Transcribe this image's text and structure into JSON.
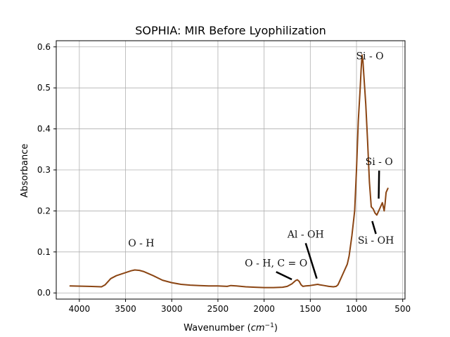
{
  "chart_data": {
    "type": "line",
    "title": "SOPHIA: MIR Before Lyophilization",
    "xlabel": "Wavenumber",
    "xlabel_unit_base": "cm",
    "xlabel_unit_exp": "−1",
    "ylabel": "Absorbance",
    "xlim": [
      4250,
      475
    ],
    "ylim": [
      -0.015,
      0.615
    ],
    "x_ticks": [
      4000,
      3500,
      3000,
      2500,
      2000,
      1500,
      1000,
      500
    ],
    "y_ticks": [
      0.0,
      0.1,
      0.2,
      0.3,
      0.4,
      0.5,
      0.6
    ],
    "grid": true,
    "series": [
      {
        "color": "#8b4513",
        "x": [
          4100,
          3900,
          3760,
          3720,
          3700,
          3660,
          3600,
          3520,
          3440,
          3400,
          3350,
          3300,
          3200,
          3100,
          3000,
          2900,
          2800,
          2700,
          2600,
          2500,
          2400,
          2360,
          2300,
          2200,
          2100,
          2000,
          1900,
          1800,
          1750,
          1700,
          1660,
          1640,
          1620,
          1600,
          1580,
          1550,
          1500,
          1450,
          1420,
          1400,
          1350,
          1300,
          1250,
          1220,
          1200,
          1180,
          1150,
          1100,
          1080,
          1050,
          1020,
          1000,
          980,
          960,
          950,
          940,
          930,
          920,
          900,
          880,
          860,
          840,
          820,
          800,
          780,
          760,
          740,
          720,
          710,
          700,
          690,
          680,
          670,
          660
        ],
        "y": [
          0.017,
          0.016,
          0.015,
          0.02,
          0.025,
          0.035,
          0.042,
          0.048,
          0.054,
          0.056,
          0.055,
          0.052,
          0.042,
          0.031,
          0.025,
          0.021,
          0.019,
          0.018,
          0.017,
          0.017,
          0.016,
          0.018,
          0.017,
          0.015,
          0.014,
          0.013,
          0.013,
          0.014,
          0.016,
          0.022,
          0.03,
          0.032,
          0.028,
          0.02,
          0.016,
          0.017,
          0.018,
          0.02,
          0.021,
          0.02,
          0.018,
          0.016,
          0.015,
          0.016,
          0.02,
          0.03,
          0.045,
          0.07,
          0.09,
          0.14,
          0.2,
          0.3,
          0.42,
          0.5,
          0.545,
          0.58,
          0.565,
          0.53,
          0.46,
          0.37,
          0.27,
          0.21,
          0.205,
          0.195,
          0.19,
          0.2,
          0.21,
          0.22,
          0.21,
          0.2,
          0.22,
          0.245,
          0.25,
          0.255
        ]
      }
    ],
    "annotations": [
      {
        "text": "O - H",
        "x": 3330,
        "y": 0.113
      },
      {
        "text": "O - H, C = O",
        "x": 1870,
        "y": 0.065,
        "arrow_to": [
          1700,
          0.033
        ]
      },
      {
        "text": "Al - OH",
        "x": 1550,
        "y": 0.135,
        "arrow_to": [
          1430,
          0.035
        ]
      },
      {
        "text": "Si - O",
        "x": 855,
        "y": 0.57
      },
      {
        "text": "Si - O",
        "x": 755,
        "y": 0.312,
        "arrow_to": [
          760,
          0.23
        ]
      },
      {
        "text": "Si - OH",
        "x": 790,
        "y": 0.12,
        "arrow_to": [
          830,
          0.175
        ]
      }
    ]
  }
}
